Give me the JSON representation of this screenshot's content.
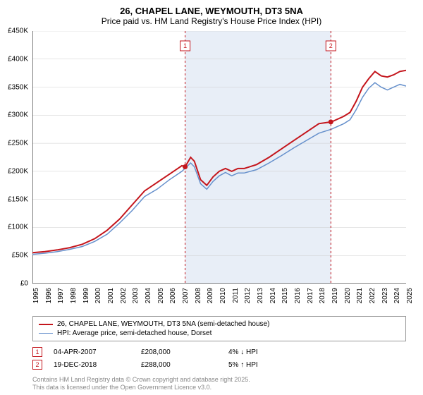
{
  "title": "26, CHAPEL LANE, WEYMOUTH, DT3 5NA",
  "subtitle": "Price paid vs. HM Land Registry's House Price Index (HPI)",
  "chart": {
    "type": "line",
    "background_color": "#ffffff",
    "shade_color": "#e8eef7",
    "grid_color": "#cccccc",
    "axis_color": "#000000",
    "ylim": [
      0,
      450
    ],
    "ytick_step": 50,
    "y_labels": [
      "£0",
      "£50K",
      "£100K",
      "£150K",
      "£200K",
      "£250K",
      "£300K",
      "£350K",
      "£400K",
      "£450K"
    ],
    "xlim": [
      1995,
      2025
    ],
    "x_labels": [
      "1995",
      "1996",
      "1997",
      "1998",
      "1999",
      "2000",
      "2001",
      "2002",
      "2003",
      "2004",
      "2005",
      "2006",
      "2007",
      "2008",
      "2009",
      "2010",
      "2011",
      "2012",
      "2013",
      "2014",
      "2015",
      "2016",
      "2017",
      "2018",
      "2019",
      "2020",
      "2021",
      "2022",
      "2023",
      "2024",
      "2025"
    ],
    "shade_range": [
      2007.26,
      2018.96
    ],
    "series": [
      {
        "name": "price_paid",
        "color": "#c4151c",
        "thick": true,
        "points": [
          [
            1995,
            55
          ],
          [
            1996,
            57
          ],
          [
            1997,
            60
          ],
          [
            1998,
            64
          ],
          [
            1999,
            70
          ],
          [
            2000,
            80
          ],
          [
            2001,
            95
          ],
          [
            2002,
            115
          ],
          [
            2003,
            140
          ],
          [
            2004,
            165
          ],
          [
            2005,
            180
          ],
          [
            2006,
            195
          ],
          [
            2007,
            210
          ],
          [
            2007.26,
            208
          ],
          [
            2007.7,
            225
          ],
          [
            2008,
            218
          ],
          [
            2008.5,
            185
          ],
          [
            2009,
            175
          ],
          [
            2009.5,
            190
          ],
          [
            2010,
            200
          ],
          [
            2010.5,
            205
          ],
          [
            2011,
            200
          ],
          [
            2011.5,
            205
          ],
          [
            2012,
            205
          ],
          [
            2013,
            212
          ],
          [
            2014,
            225
          ],
          [
            2015,
            240
          ],
          [
            2016,
            255
          ],
          [
            2017,
            270
          ],
          [
            2018,
            285
          ],
          [
            2018.96,
            288
          ],
          [
            2019,
            288
          ],
          [
            2020,
            298
          ],
          [
            2020.5,
            305
          ],
          [
            2021,
            325
          ],
          [
            2021.5,
            350
          ],
          [
            2022,
            365
          ],
          [
            2022.5,
            378
          ],
          [
            2023,
            370
          ],
          [
            2023.5,
            368
          ],
          [
            2024,
            372
          ],
          [
            2024.5,
            378
          ],
          [
            2025,
            380
          ]
        ]
      },
      {
        "name": "hpi",
        "color": "#6690cc",
        "thick": false,
        "points": [
          [
            1995,
            52
          ],
          [
            1996,
            54
          ],
          [
            1997,
            57
          ],
          [
            1998,
            61
          ],
          [
            1999,
            66
          ],
          [
            2000,
            75
          ],
          [
            2001,
            88
          ],
          [
            2002,
            108
          ],
          [
            2003,
            130
          ],
          [
            2004,
            155
          ],
          [
            2005,
            168
          ],
          [
            2006,
            185
          ],
          [
            2007,
            200
          ],
          [
            2007.7,
            215
          ],
          [
            2008,
            208
          ],
          [
            2008.5,
            178
          ],
          [
            2009,
            168
          ],
          [
            2009.5,
            182
          ],
          [
            2010,
            192
          ],
          [
            2010.5,
            198
          ],
          [
            2011,
            192
          ],
          [
            2011.5,
            197
          ],
          [
            2012,
            197
          ],
          [
            2013,
            203
          ],
          [
            2014,
            215
          ],
          [
            2015,
            228
          ],
          [
            2016,
            242
          ],
          [
            2017,
            255
          ],
          [
            2018,
            268
          ],
          [
            2019,
            275
          ],
          [
            2020,
            285
          ],
          [
            2020.5,
            292
          ],
          [
            2021,
            310
          ],
          [
            2021.5,
            332
          ],
          [
            2022,
            348
          ],
          [
            2022.5,
            358
          ],
          [
            2023,
            350
          ],
          [
            2023.5,
            345
          ],
          [
            2024,
            350
          ],
          [
            2024.5,
            355
          ],
          [
            2025,
            352
          ]
        ]
      }
    ],
    "markers": [
      {
        "n": "1",
        "x": 2007.26,
        "y": 208,
        "color": "#c4151c"
      },
      {
        "n": "2",
        "x": 2018.96,
        "y": 288,
        "color": "#c4151c"
      }
    ]
  },
  "legend": [
    {
      "color": "#c4151c",
      "label": "26, CHAPEL LANE, WEYMOUTH, DT3 5NA (semi-detached house)",
      "thick": true
    },
    {
      "color": "#6690cc",
      "label": "HPI: Average price, semi-detached house, Dorset",
      "thick": false
    }
  ],
  "callouts": [
    {
      "n": "1",
      "color": "#c4151c",
      "date": "04-APR-2007",
      "price": "£208,000",
      "pct": "4% ↓ HPI"
    },
    {
      "n": "2",
      "color": "#c4151c",
      "date": "19-DEC-2018",
      "price": "£288,000",
      "pct": "5% ↑ HPI"
    }
  ],
  "footnote_line1": "Contains HM Land Registry data © Crown copyright and database right 2025.",
  "footnote_line2": "This data is licensed under the Open Government Licence v3.0."
}
